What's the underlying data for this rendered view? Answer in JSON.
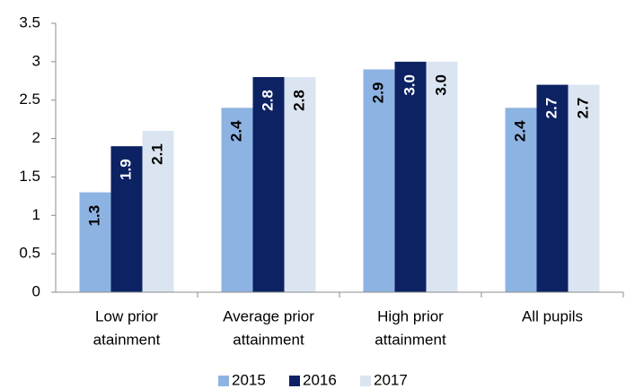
{
  "chart_data": {
    "type": "bar",
    "categories": [
      [
        "Low prior",
        "atainment"
      ],
      [
        "Average prior",
        "attainment"
      ],
      [
        "High prior",
        "attainment"
      ],
      [
        "All pupils"
      ]
    ],
    "series": [
      {
        "name": "2015",
        "color": "#8db3e2",
        "values": [
          1.3,
          2.4,
          2.9,
          2.4
        ],
        "value_labels": [
          "1.3",
          "2.4",
          "2.9",
          "2.4"
        ]
      },
      {
        "name": "2016",
        "color": "#0c2263",
        "values": [
          1.9,
          2.8,
          3.0,
          2.7
        ],
        "value_labels": [
          "1.9",
          "2.8",
          "3.0",
          "2.7"
        ]
      },
      {
        "name": "2017",
        "color": "#dbe5f1",
        "values": [
          2.1,
          2.8,
          3.0,
          2.7
        ],
        "value_labels": [
          "2.1",
          "2.8",
          "3.0",
          "2.7"
        ]
      }
    ],
    "ylim": [
      0,
      3.5
    ],
    "yticks": [
      0,
      0.5,
      1,
      1.5,
      2,
      2.5,
      3,
      3.5
    ],
    "grid": false
  }
}
